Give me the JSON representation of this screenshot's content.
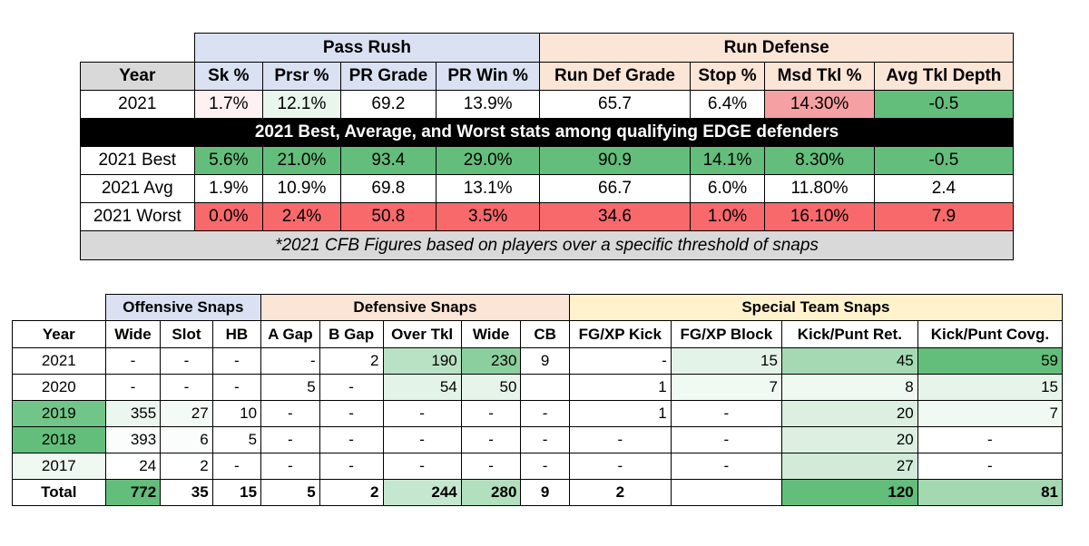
{
  "top_table": {
    "group_headers": {
      "pass_rush": "Pass Rush",
      "run_defense": "Run Defense"
    },
    "columns": [
      "Year",
      "Sk %",
      "Prsr %",
      "PR Grade",
      "PR Win %",
      "Run Def Grade",
      "Stop %",
      "Msd Tkl %",
      "Avg Tkl Depth"
    ],
    "player_row": {
      "cells": [
        "2021",
        "1.7%",
        "12.1%",
        "69.2",
        "13.9%",
        "65.7",
        "6.4%",
        "14.30%",
        "-0.5"
      ],
      "colors": [
        "#ffffff",
        "#fdf1f1",
        "#e9f6ec",
        "#ffffff",
        "#ffffff",
        "#ffffff",
        "#ffffff",
        "#f5a0a3",
        "#63be7b"
      ]
    },
    "banner": "2021 Best, Average, and Worst stats among qualifying EDGE defenders",
    "benchmark_rows": [
      {
        "cells": [
          "2021 Best",
          "5.6%",
          "21.0%",
          "93.4",
          "29.0%",
          "90.9",
          "14.1%",
          "8.30%",
          "-0.5"
        ],
        "colors": [
          "#ffffff",
          "#63be7b",
          "#63be7b",
          "#63be7b",
          "#63be7b",
          "#63be7b",
          "#63be7b",
          "#63be7b",
          "#63be7b"
        ]
      },
      {
        "cells": [
          "2021 Avg",
          "1.9%",
          "10.9%",
          "69.8",
          "13.1%",
          "66.7",
          "6.0%",
          "11.80%",
          "2.4"
        ],
        "colors": [
          "#ffffff",
          "#ffffff",
          "#ffffff",
          "#ffffff",
          "#ffffff",
          "#ffffff",
          "#ffffff",
          "#ffffff",
          "#ffffff"
        ]
      },
      {
        "cells": [
          "2021 Worst",
          "0.0%",
          "2.4%",
          "50.8",
          "3.5%",
          "34.6",
          "1.0%",
          "16.10%",
          "7.9"
        ],
        "colors": [
          "#ffffff",
          "#f8696b",
          "#f8696b",
          "#f8696b",
          "#f8696b",
          "#f8696b",
          "#f8696b",
          "#f8696b",
          "#f8696b"
        ]
      }
    ],
    "footnote": "*2021 CFB Figures based on players over a specific threshold of snaps"
  },
  "snap_table": {
    "group_headers": {
      "offensive": "Offensive Snaps",
      "defensive": "Defensive Snaps",
      "special": "Special Team Snaps"
    },
    "columns": [
      "Year",
      "Wide",
      "Slot",
      "HB",
      "A Gap",
      "B Gap",
      "Over Tkl",
      "Wide",
      "CB",
      "FG/XP Kick",
      "FG/XP Block",
      "Kick/Punt Ret.",
      "Kick/Punt Covg."
    ],
    "rows": [
      {
        "cells": [
          "2021",
          "-",
          "-",
          "-",
          "-",
          "2",
          "190",
          "230",
          "9",
          "-",
          "15",
          "45",
          "59"
        ],
        "colors": [
          "#ffffff",
          "#ffffff",
          "#ffffff",
          "#ffffff",
          "#ffffff",
          "#ffffff",
          "#b9e2c4",
          "#8ccf9e",
          "#ffffff",
          "#ffffff",
          "#e4f3e8",
          "#a5d9b3",
          "#63be7b"
        ]
      },
      {
        "cells": [
          "2020",
          "-",
          "-",
          "-",
          "5",
          "-",
          "54",
          "50",
          "",
          "1",
          "7",
          "8",
          "15"
        ],
        "colors": [
          "#ffffff",
          "#ffffff",
          "#ffffff",
          "#ffffff",
          "#ffffff",
          "#ffffff",
          "#e3f3e7",
          "#e6f4ea",
          "#ffffff",
          "#ffffff",
          "#f1f9f3",
          "#eff8f1",
          "#e6f4ea"
        ]
      },
      {
        "cells": [
          "2019",
          "355",
          "27",
          "10",
          "-",
          "-",
          "-",
          "-",
          "-",
          "1",
          "-",
          "20",
          "7"
        ],
        "colors": [
          "#72c588",
          "#ebf6ee",
          "#f4faf6",
          "#ffffff",
          "#ffffff",
          "#ffffff",
          "#ffffff",
          "#ffffff",
          "#ffffff",
          "#ffffff",
          "#ffffff",
          "#dcefe1",
          "#f1f9f3"
        ]
      },
      {
        "cells": [
          "2018",
          "393",
          "6",
          "5",
          "-",
          "-",
          "-",
          "-",
          "-",
          "-",
          "-",
          "20",
          "-"
        ],
        "colors": [
          "#63be7b",
          "#fafdfb",
          "#fafdfb",
          "#ffffff",
          "#ffffff",
          "#ffffff",
          "#ffffff",
          "#ffffff",
          "#ffffff",
          "#ffffff",
          "#ffffff",
          "#dcefe1",
          "#ffffff"
        ]
      },
      {
        "cells": [
          "2017",
          "24",
          "2",
          "-",
          "-",
          "-",
          "-",
          "-",
          "-",
          "-",
          "-",
          "27",
          "-"
        ],
        "colors": [
          "#eff8f1",
          "#ffffff",
          "#ffffff",
          "#ffffff",
          "#ffffff",
          "#ffffff",
          "#ffffff",
          "#ffffff",
          "#ffffff",
          "#ffffff",
          "#ffffff",
          "#d2ebd8",
          "#ffffff"
        ]
      }
    ],
    "total_row": {
      "cells": [
        "Total",
        "772",
        "35",
        "15",
        "5",
        "2",
        "244",
        "280",
        "9",
        "2",
        "",
        "120",
        "81"
      ],
      "colors": [
        "#ffffff",
        "#63be7b",
        "#ffffff",
        "#ffffff",
        "#ffffff",
        "#ffffff",
        "#c6e7cf",
        "#b2dfbe",
        "#ffffff",
        "#ffffff",
        "#ffffff",
        "#63be7b",
        "#a3d8b1"
      ]
    }
  }
}
